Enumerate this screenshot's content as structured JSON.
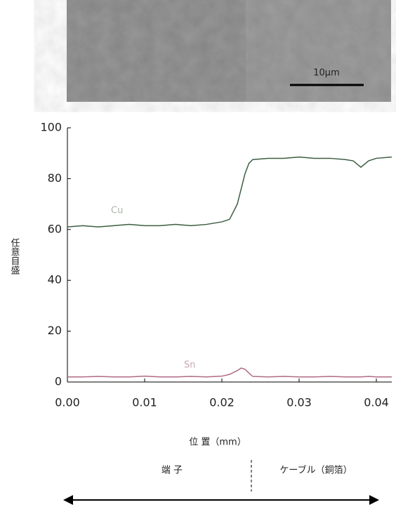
{
  "chart_data": {
    "type": "line",
    "scale_bar": "10μm",
    "ylabel": "任意目盛",
    "xlabel": "位 置（mm）",
    "regions": [
      "端 子",
      "ケーブル（銅箔）"
    ],
    "annotations": [
      "Cu",
      "Sn"
    ],
    "x": [
      0,
      0.002,
      0.004,
      0.006,
      0.008,
      0.01,
      0.012,
      0.014,
      0.016,
      0.018,
      0.02,
      0.021,
      0.022,
      0.0225,
      0.023,
      0.0235,
      0.024,
      0.026,
      0.028,
      0.03,
      0.032,
      0.034,
      0.036,
      0.037,
      0.038,
      0.039,
      0.04,
      0.042
    ],
    "series": [
      {
        "name": "Cu",
        "color": "#3d5e40",
        "values": [
          61,
          61.5,
          61,
          61.5,
          62,
          61.5,
          61.5,
          62,
          61.5,
          62,
          63,
          64,
          70,
          76,
          82,
          86,
          87.5,
          88,
          88,
          88.5,
          88,
          88,
          87.5,
          87,
          84.5,
          87,
          88,
          88.5
        ]
      },
      {
        "name": "Sn",
        "color": "#b06a86",
        "values": [
          2,
          2,
          2.2,
          2,
          2,
          2.3,
          2,
          2,
          2.2,
          2,
          2.3,
          3,
          4.5,
          5.5,
          5,
          3.5,
          2.2,
          2,
          2.2,
          2,
          2,
          2.2,
          2,
          2,
          2,
          2.2,
          2,
          2
        ]
      }
    ],
    "xlim": [
      0,
      0.042
    ],
    "ylim": [
      0,
      100
    ],
    "xticks": [
      {
        "value": 0,
        "label": "0.00"
      },
      0.01,
      0.02,
      0.03,
      0.04
    ],
    "yticks": [
      0,
      20,
      40,
      60,
      80,
      100
    ]
  }
}
